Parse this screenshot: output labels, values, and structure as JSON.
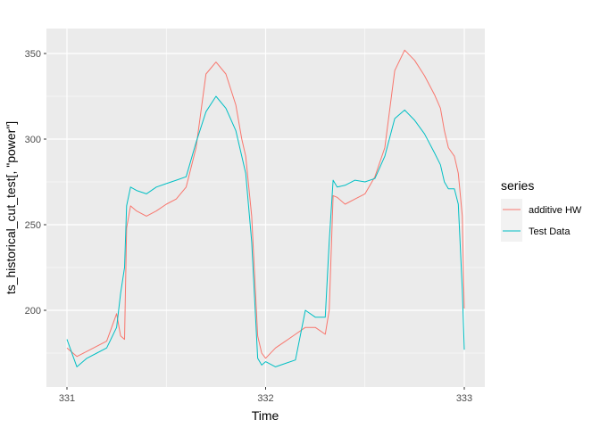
{
  "chart_data": {
    "type": "line",
    "xlabel": "Time",
    "ylabel": "ts_historical_cut_test[, \"power\"]",
    "xlim": [
      331,
      333
    ],
    "ylim": [
      164,
      355
    ],
    "x_ticks": [
      331,
      332,
      333
    ],
    "x_tick_labels": [
      "331",
      "332",
      "333"
    ],
    "y_ticks": [
      200,
      250,
      300,
      350
    ],
    "y_tick_labels": [
      "200",
      "250",
      "300",
      "350"
    ],
    "grid": true,
    "legend": {
      "title": "series",
      "position": "right"
    },
    "x": [
      331.0,
      331.05,
      331.1,
      331.15,
      331.2,
      331.25,
      331.27,
      331.29,
      331.3,
      331.32,
      331.35,
      331.4,
      331.45,
      331.5,
      331.55,
      331.6,
      331.65,
      331.7,
      331.75,
      331.8,
      331.85,
      331.88,
      331.9,
      331.93,
      331.96,
      331.98,
      332.0,
      332.05,
      332.1,
      332.15,
      332.2,
      332.25,
      332.3,
      332.32,
      332.34,
      332.36,
      332.4,
      332.45,
      332.5,
      332.55,
      332.6,
      332.65,
      332.7,
      332.75,
      332.8,
      332.85,
      332.88,
      332.9,
      332.92,
      332.95,
      332.97,
      332.99,
      333.0
    ],
    "series": [
      {
        "name": "additive HW",
        "color": "#F8766D",
        "values": [
          178,
          173,
          176,
          179,
          182,
          198,
          185,
          183,
          248,
          261,
          258,
          255,
          258,
          262,
          265,
          272,
          295,
          338,
          345,
          338,
          320,
          300,
          290,
          255,
          185,
          175,
          172,
          178,
          182,
          186,
          190,
          190,
          186,
          200,
          267,
          266,
          262,
          265,
          268,
          278,
          295,
          340,
          352,
          346,
          337,
          326,
          318,
          305,
          295,
          290,
          280,
          255,
          201
        ]
      },
      {
        "name": "Test Data",
        "color": "#00BFC4",
        "values": [
          183,
          167,
          172,
          175,
          178,
          190,
          210,
          225,
          261,
          272,
          270,
          268,
          272,
          274,
          276,
          278,
          298,
          316,
          325,
          318,
          305,
          290,
          280,
          240,
          172,
          168,
          170,
          167,
          169,
          171,
          200,
          196,
          196,
          240,
          276,
          272,
          273,
          276,
          275,
          277,
          290,
          312,
          317,
          311,
          303,
          292,
          285,
          275,
          271,
          271,
          262,
          212,
          177
        ]
      }
    ]
  }
}
